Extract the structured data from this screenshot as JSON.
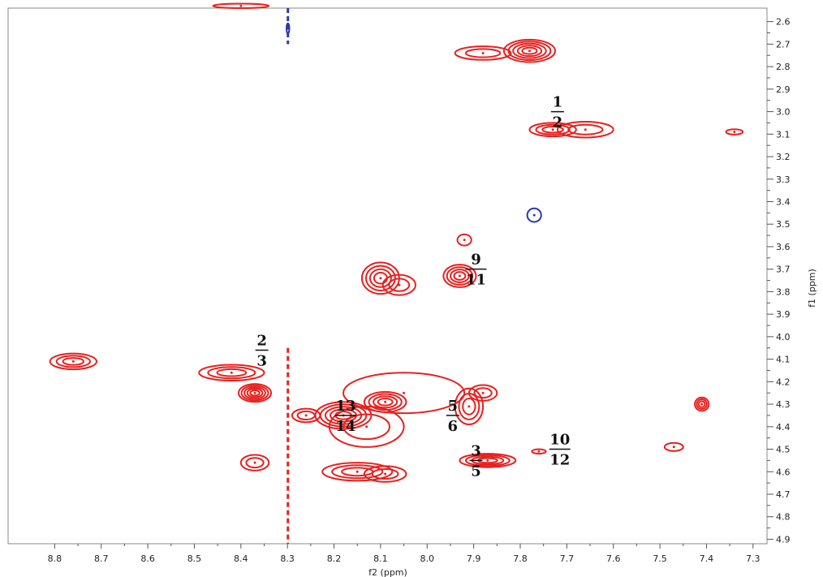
{
  "chart_data": {
    "type": "contour",
    "xlabel": "f2 (ppm)",
    "ylabel": "f1 (ppm)",
    "xlim": [
      8.9,
      7.27
    ],
    "ylim": [
      2.54,
      4.92
    ],
    "x_ticks": [
      "8.8",
      "8.7",
      "8.6",
      "8.5",
      "8.4",
      "8.3",
      "8.2",
      "8.1",
      "8.0",
      "7.9",
      "7.8",
      "7.7",
      "7.6",
      "7.5",
      "7.4",
      "7.3"
    ],
    "y_ticks": [
      "2.6",
      "2.7",
      "2.8",
      "2.9",
      "3.0",
      "3.1",
      "3.2",
      "3.3",
      "3.4",
      "3.5",
      "3.6",
      "3.7",
      "3.8",
      "3.9",
      "4.0",
      "4.1",
      "4.2",
      "4.3",
      "4.4",
      "4.5",
      "4.6",
      "4.7",
      "4.8",
      "4.9"
    ],
    "colors": {
      "positive": "#e8201e",
      "negative": "#2b3aa8",
      "axis": "#555555"
    },
    "positive_peaks": [
      {
        "x": 7.78,
        "y": 2.73,
        "rx": 0.055,
        "ry": 0.05,
        "levels": 5
      },
      {
        "x": 7.88,
        "y": 2.74,
        "rx": 0.06,
        "ry": 0.03,
        "levels": 2
      },
      {
        "x": 7.73,
        "y": 3.08,
        "rx": 0.05,
        "ry": 0.03,
        "levels": 3
      },
      {
        "x": 7.66,
        "y": 3.08,
        "rx": 0.06,
        "ry": 0.035,
        "levels": 2
      },
      {
        "x": 7.34,
        "y": 3.09,
        "rx": 0.018,
        "ry": 0.012,
        "levels": 1
      },
      {
        "x": 7.92,
        "y": 3.57,
        "rx": 0.015,
        "ry": 0.025,
        "levels": 1
      },
      {
        "x": 8.1,
        "y": 3.74,
        "rx": 0.04,
        "ry": 0.07,
        "levels": 4
      },
      {
        "x": 8.06,
        "y": 3.77,
        "rx": 0.035,
        "ry": 0.045,
        "levels": 2
      },
      {
        "x": 7.93,
        "y": 3.73,
        "rx": 0.035,
        "ry": 0.05,
        "levels": 4
      },
      {
        "x": 8.76,
        "y": 4.11,
        "rx": 0.05,
        "ry": 0.035,
        "levels": 3
      },
      {
        "x": 8.42,
        "y": 4.16,
        "rx": 0.07,
        "ry": 0.035,
        "levels": 3
      },
      {
        "x": 8.37,
        "y": 4.25,
        "rx": 0.035,
        "ry": 0.04,
        "levels": 5
      },
      {
        "x": 8.18,
        "y": 4.35,
        "rx": 0.06,
        "ry": 0.06,
        "levels": 5
      },
      {
        "x": 8.09,
        "y": 4.29,
        "rx": 0.045,
        "ry": 0.045,
        "levels": 4
      },
      {
        "x": 8.13,
        "y": 4.4,
        "rx": 0.08,
        "ry": 0.09,
        "levels": 2
      },
      {
        "x": 8.05,
        "y": 4.25,
        "rx": 0.13,
        "ry": 0.09,
        "levels": 1
      },
      {
        "x": 8.26,
        "y": 4.35,
        "rx": 0.03,
        "ry": 0.03,
        "levels": 2
      },
      {
        "x": 7.91,
        "y": 4.31,
        "rx": 0.03,
        "ry": 0.08,
        "levels": 3
      },
      {
        "x": 7.88,
        "y": 4.25,
        "rx": 0.03,
        "ry": 0.035,
        "levels": 2
      },
      {
        "x": 8.15,
        "y": 4.6,
        "rx": 0.075,
        "ry": 0.04,
        "levels": 3
      },
      {
        "x": 8.09,
        "y": 4.61,
        "rx": 0.045,
        "ry": 0.035,
        "levels": 2
      },
      {
        "x": 7.87,
        "y": 4.55,
        "rx": 0.06,
        "ry": 0.03,
        "levels": 4
      },
      {
        "x": 8.37,
        "y": 4.56,
        "rx": 0.03,
        "ry": 0.035,
        "levels": 2
      },
      {
        "x": 7.41,
        "y": 4.3,
        "rx": 0.015,
        "ry": 0.03,
        "levels": 3
      },
      {
        "x": 7.47,
        "y": 4.49,
        "rx": 0.02,
        "ry": 0.018,
        "levels": 1
      },
      {
        "x": 7.76,
        "y": 4.51,
        "rx": 0.015,
        "ry": 0.01,
        "levels": 1
      },
      {
        "x": 8.4,
        "y": 2.53,
        "rx": 0.06,
        "ry": 0.01,
        "levels": 1
      }
    ],
    "negative_peaks": [
      {
        "x": 7.77,
        "y": 3.46,
        "rx": 0.015,
        "ry": 0.03,
        "levels": 1
      },
      {
        "x": 8.299,
        "y": 2.63,
        "rx": 0.003,
        "ry": 0.022,
        "levels": 1
      }
    ],
    "vertical_streaks": [
      {
        "x": 8.299,
        "y_start": 2.54,
        "y_end": 2.7,
        "color": "negative",
        "dashed": true
      },
      {
        "x": 8.299,
        "y_start": 4.05,
        "y_end": 4.92,
        "color": "positive",
        "dashed": true
      }
    ],
    "annotations": [
      {
        "top": "1",
        "bottom": "2",
        "x": 7.72,
        "y": 3.0
      },
      {
        "top": "9",
        "bottom": "11",
        "x": 7.895,
        "y": 3.7
      },
      {
        "top": "2",
        "bottom": "3",
        "x": 8.355,
        "y": 4.06
      },
      {
        "top": "13",
        "bottom": "14",
        "x": 8.175,
        "y": 4.35
      },
      {
        "top": "5",
        "bottom": "6",
        "x": 7.945,
        "y": 4.35
      },
      {
        "top": "10",
        "bottom": "12",
        "x": 7.715,
        "y": 4.5
      },
      {
        "top": "3",
        "bottom": "5",
        "x": 7.895,
        "y": 4.55
      }
    ]
  }
}
